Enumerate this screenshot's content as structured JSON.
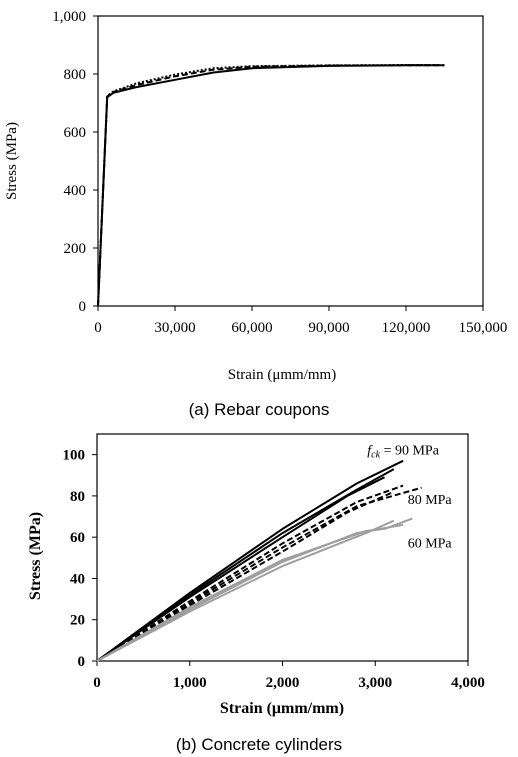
{
  "chart_data": [
    {
      "type": "line",
      "caption": "(a)  Rebar coupons",
      "xlabel": "Strain  (μmm/mm)",
      "ylabel": "Stress  (MPa)",
      "xlim": [
        0,
        150000
      ],
      "ylim": [
        0,
        1000
      ],
      "x_ticks": [
        "0",
        "30,000",
        "60,000",
        "90,000",
        "120,000",
        "150,000"
      ],
      "y_ticks": [
        "0",
        "200",
        "400",
        "600",
        "800",
        "1,000"
      ],
      "grid": false,
      "series": [
        {
          "style": "solid",
          "points": [
            [
              0,
              0
            ],
            [
              3600,
              720
            ],
            [
              6000,
              735
            ],
            [
              15000,
              755
            ],
            [
              30000,
              780
            ],
            [
              45000,
              805
            ],
            [
              60000,
              820
            ],
            [
              90000,
              828
            ],
            [
              120000,
              830
            ],
            [
              135000,
              830
            ]
          ]
        },
        {
          "style": "dashed",
          "points": [
            [
              0,
              0
            ],
            [
              3600,
              722
            ],
            [
              6000,
              738
            ],
            [
              15000,
              762
            ],
            [
              30000,
              792
            ],
            [
              45000,
              815
            ],
            [
              60000,
              825
            ],
            [
              90000,
              829
            ],
            [
              120000,
              830
            ],
            [
              135000,
              830
            ]
          ]
        },
        {
          "style": "dotted",
          "points": [
            [
              0,
              0
            ],
            [
              3600,
              724
            ],
            [
              6000,
              740
            ],
            [
              15000,
              768
            ],
            [
              30000,
              798
            ],
            [
              45000,
              820
            ],
            [
              60000,
              827
            ],
            [
              90000,
              830
            ],
            [
              120000,
              831
            ],
            [
              133000,
              831
            ]
          ]
        }
      ]
    },
    {
      "type": "line",
      "caption": "(b)  Concrete cylinders",
      "xlabel": "Strain (μmm/mm)",
      "ylabel": "Stress (MPa)",
      "xlim": [
        0,
        4000
      ],
      "ylim": [
        0,
        110
      ],
      "x_ticks": [
        "0",
        "1,000",
        "2,000",
        "3,000",
        "4,000"
      ],
      "y_ticks": [
        "0",
        "20",
        "40",
        "60",
        "80",
        "100"
      ],
      "grid": false,
      "annotations": [
        {
          "text_prefix": "f",
          "text_sub": "ck",
          "text_suffix": " = 90 MPa",
          "at": [
            3300,
            100
          ]
        },
        {
          "text": "80 MPa",
          "at": [
            3350,
            76
          ]
        },
        {
          "text": "60 MPa",
          "at": [
            3350,
            55
          ]
        }
      ],
      "series": [
        {
          "group": "90 MPa",
          "color": "#000000",
          "style": "solid",
          "points": [
            [
              0,
              0
            ],
            [
              1000,
              33
            ],
            [
              2000,
              64
            ],
            [
              2800,
              86
            ],
            [
              3300,
              97
            ]
          ]
        },
        {
          "group": "90 MPa",
          "color": "#000000",
          "style": "solid",
          "points": [
            [
              0,
              0
            ],
            [
              1000,
              32
            ],
            [
              2000,
              62
            ],
            [
              2800,
              83
            ],
            [
              3200,
              93
            ]
          ]
        },
        {
          "group": "90 MPa",
          "color": "#000000",
          "style": "solid",
          "points": [
            [
              0,
              0
            ],
            [
              1000,
              31
            ],
            [
              2000,
              60
            ],
            [
              2700,
              80
            ],
            [
              3100,
              89
            ]
          ]
        },
        {
          "group": "80 MPa",
          "color": "#000000",
          "style": "dashed",
          "points": [
            [
              0,
              0
            ],
            [
              1000,
              29
            ],
            [
              2000,
              57
            ],
            [
              2800,
              77
            ],
            [
              3300,
              85
            ]
          ]
        },
        {
          "group": "80 MPa",
          "color": "#000000",
          "style": "dashed",
          "points": [
            [
              0,
              0
            ],
            [
              1000,
              28
            ],
            [
              2000,
              55
            ],
            [
              2800,
              75
            ],
            [
              3500,
              84
            ]
          ]
        },
        {
          "group": "80 MPa",
          "color": "#000000",
          "style": "dashed",
          "points": [
            [
              0,
              0
            ],
            [
              1000,
              27
            ],
            [
              2000,
              53
            ],
            [
              2700,
              72
            ],
            [
              3200,
              82
            ]
          ]
        },
        {
          "group": "60 MPa",
          "color": "#9e9e9e",
          "style": "solid",
          "points": [
            [
              0,
              0
            ],
            [
              1000,
              26
            ],
            [
              2000,
              49
            ],
            [
              2900,
              63
            ],
            [
              3100,
              64
            ],
            [
              3400,
              69
            ]
          ]
        },
        {
          "group": "60 MPa",
          "color": "#9e9e9e",
          "style": "solid",
          "points": [
            [
              0,
              0
            ],
            [
              1000,
              25
            ],
            [
              2000,
              48
            ],
            [
              2800,
              62
            ],
            [
              3300,
              66
            ]
          ]
        },
        {
          "group": "60 MPa",
          "color": "#9e9e9e",
          "style": "solid",
          "points": [
            [
              0,
              0
            ],
            [
              1000,
              24
            ],
            [
              2000,
              46
            ],
            [
              2900,
              62
            ],
            [
              3200,
              68
            ]
          ]
        }
      ]
    }
  ]
}
